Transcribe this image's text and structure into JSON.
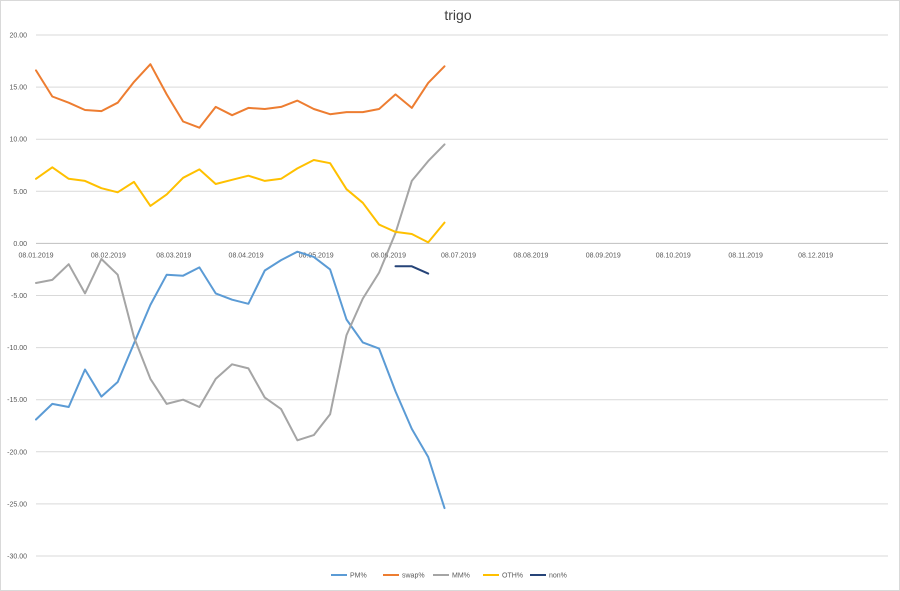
{
  "chart_data": {
    "type": "line",
    "title": "trigo",
    "xlabel": "",
    "ylabel": "",
    "ylim": [
      -30,
      20
    ],
    "y_ticks": [
      "20.00",
      "15.00",
      "10.00",
      "5.00",
      "0.00",
      "-5.00",
      "-10.00",
      "-15.00",
      "-20.00",
      "-25.00",
      "-30.00"
    ],
    "x_ticks": [
      "08.01.2019",
      "08.02.2019",
      "08.03.2019",
      "08.04.2019",
      "08.05.2019",
      "08.06.2019",
      "08.07.2019",
      "08.08.2019",
      "08.09.2019",
      "08.10.2019",
      "08.11.2019",
      "08.12.2019"
    ],
    "x_dates": [
      "2019-01-08",
      "2019-01-15",
      "2019-01-22",
      "2019-01-29",
      "2019-02-05",
      "2019-02-12",
      "2019-02-19",
      "2019-02-26",
      "2019-03-05",
      "2019-03-12",
      "2019-03-19",
      "2019-03-26",
      "2019-04-02",
      "2019-04-09",
      "2019-04-16",
      "2019-04-23",
      "2019-04-30",
      "2019-05-07",
      "2019-05-14",
      "2019-05-21",
      "2019-05-28",
      "2019-06-04",
      "2019-06-11",
      "2019-06-18",
      "2019-06-25",
      "2019-07-02"
    ],
    "grid": true,
    "legend_position": "bottom",
    "series": [
      {
        "name": "PM%",
        "color": "#5B9BD5",
        "values": [
          -16.9,
          -15.4,
          -15.7,
          -12.1,
          -14.7,
          -13.3,
          -9.6,
          -5.9,
          -3.0,
          -3.1,
          -2.3,
          -4.8,
          -5.4,
          -5.8,
          -2.6,
          -1.6,
          -0.8,
          -1.3,
          -2.5,
          -7.3,
          -9.5,
          -10.1,
          -14.2,
          -17.8,
          -20.5,
          -25.4
        ]
      },
      {
        "name": "swap%",
        "color": "#ED7D31",
        "values": [
          16.6,
          14.1,
          13.5,
          12.8,
          12.7,
          13.5,
          15.5,
          17.2,
          14.3,
          11.7,
          11.1,
          13.1,
          12.3,
          13.0,
          12.9,
          13.1,
          13.7,
          12.9,
          12.4,
          12.6,
          12.6,
          12.9,
          14.3,
          13.0,
          15.4,
          17.0
        ]
      },
      {
        "name": "MM%",
        "color": "#A5A5A5",
        "values": [
          -3.8,
          -3.5,
          -2.0,
          -4.8,
          -1.5,
          -3.0,
          -9.0,
          -13.0,
          -15.4,
          -15.0,
          -15.7,
          -13.0,
          -11.6,
          -12.0,
          -14.8,
          -15.9,
          -18.9,
          -18.4,
          -16.4,
          -8.8,
          -5.3,
          -2.8,
          1.0,
          6.0,
          7.9,
          9.5
        ]
      },
      {
        "name": "OTH%",
        "color": "#FFC000",
        "values": [
          6.2,
          7.3,
          6.2,
          6.0,
          5.3,
          4.9,
          5.9,
          3.6,
          4.7,
          6.3,
          7.1,
          5.7,
          6.1,
          6.5,
          6.0,
          6.2,
          7.2,
          8.0,
          7.7,
          5.2,
          3.9,
          1.8,
          1.1,
          0.9,
          0.1,
          2.0
        ]
      },
      {
        "name": "non%",
        "color": "#264478",
        "values": [
          null,
          null,
          null,
          null,
          null,
          null,
          null,
          null,
          null,
          null,
          null,
          null,
          null,
          null,
          null,
          null,
          null,
          null,
          null,
          null,
          null,
          null,
          -2.2,
          -2.2,
          -2.9,
          null
        ]
      }
    ]
  }
}
